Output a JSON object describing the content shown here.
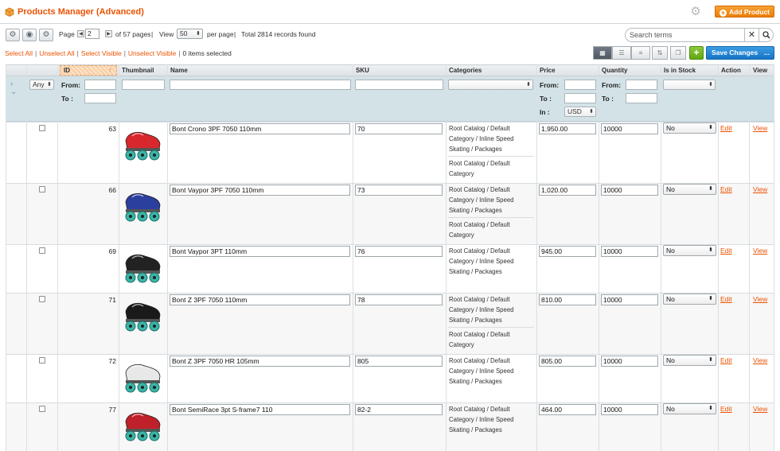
{
  "header": {
    "title": "Products Manager (Advanced)",
    "add_product_label": "Add Product"
  },
  "toolbar": {
    "page_label": "Page",
    "page_value": "2",
    "page_of": "of 57 pages",
    "view_label": "View",
    "per_page_value": "50",
    "per_page_label": "per page",
    "total_records": "Total 2814 records found",
    "search_placeholder": "Search terms",
    "select_all": "Select All",
    "unselect_all": "Unselect All",
    "select_visible": "Select Visible",
    "unselect_visible": "Unselect Visible",
    "items_selected": "0 items selected",
    "save_changes_label": "Save Changes",
    "save_more": "..."
  },
  "columns": {
    "id": "ID",
    "thumbnail": "Thumbnail",
    "name": "Name",
    "sku": "SKU",
    "categories": "Categories",
    "price": "Price",
    "quantity": "Quantity",
    "is_in_stock": "Is in Stock",
    "action": "Action",
    "view": "View"
  },
  "filters": {
    "any_label": "Any",
    "from": "From:",
    "to": "To :",
    "in": "In :",
    "currency": "USD"
  },
  "rows": [
    {
      "id": "63",
      "name": "Bont Crono 3PF 7050 110mm",
      "sku": "70",
      "categories": [
        "Root Catalog / Default Category / Inline Speed Skating / Packages",
        "Root Catalog / Default Category"
      ],
      "price": "1,950.00",
      "quantity": "10000",
      "stock": "No",
      "action": "Edit",
      "view": "View",
      "skate_color": "#d9272e"
    },
    {
      "id": "66",
      "name": "Bont Vaypor 3PF 7050 110mm",
      "sku": "73",
      "categories": [
        "Root Catalog / Default Category / Inline Speed Skating / Packages",
        "Root Catalog / Default Category"
      ],
      "price": "1,020.00",
      "quantity": "10000",
      "stock": "No",
      "action": "Edit",
      "view": "View",
      "skate_color": "#2b3f9e"
    },
    {
      "id": "69",
      "name": "Bont Vaypor 3PT 110mm",
      "sku": "76",
      "categories": [
        "Root Catalog / Default Category / Inline Speed Skating / Packages"
      ],
      "price": "945.00",
      "quantity": "10000",
      "stock": "No",
      "action": "Edit",
      "view": "View",
      "skate_color": "#222222"
    },
    {
      "id": "71",
      "name": "Bont Z 3PF 7050 110mm",
      "sku": "78",
      "categories": [
        "Root Catalog / Default Category / Inline Speed Skating / Packages",
        "Root Catalog / Default Category"
      ],
      "price": "810.00",
      "quantity": "10000",
      "stock": "No",
      "action": "Edit",
      "view": "View",
      "skate_color": "#1a1a1a"
    },
    {
      "id": "72",
      "name": "Bont Z 3PF 7050 HR 105mm",
      "sku": "805",
      "categories": [
        "Root Catalog / Default Category / Inline Speed Skating / Packages"
      ],
      "price": "805.00",
      "quantity": "10000",
      "stock": "No",
      "action": "Edit",
      "view": "View",
      "skate_color": "#e8e8e8"
    },
    {
      "id": "77",
      "name": "Bont SemiRace 3pt S-frame7 110",
      "sku": "82-2",
      "categories": [
        "Root Catalog / Default Category / Inline Speed Skating / Packages"
      ],
      "price": "464.00",
      "quantity": "10000",
      "stock": "No",
      "action": "Edit",
      "view": "View",
      "skate_color": "#c0202a"
    }
  ],
  "colors": {
    "accent": "#eb5202",
    "save_blue": "#1675c5",
    "add_green": "#60a613",
    "filter_bg": "#d3e2e6"
  }
}
